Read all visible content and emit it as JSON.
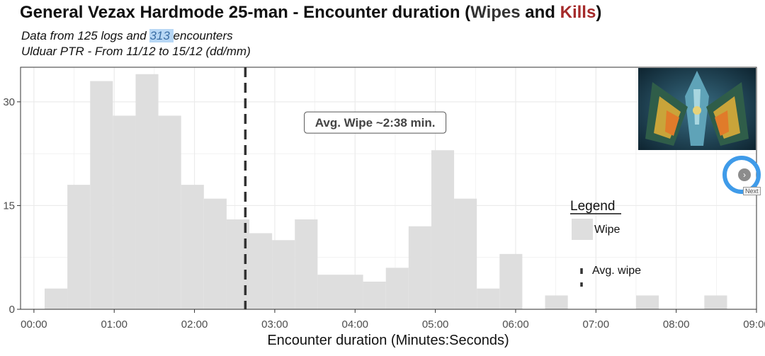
{
  "header": {
    "title_main": "General Vezax Hardmode 25-man - Encounter duration (",
    "title_wipes": "Wipes",
    "title_and": " and ",
    "title_kills": "Kills",
    "title_close": ")",
    "sub_prefix": "Data from 125 logs and ",
    "sub_highlight": "313 ",
    "sub_suffix": "encounters",
    "subtitle2": "Ulduar PTR - From 11/12 to 15/12 (dd/mm)"
  },
  "chart_data": {
    "type": "bar",
    "xlabel": "Encounter duration (Minutes:Seconds)",
    "ylabel": "",
    "xlim": [
      -10,
      540
    ],
    "ylim": [
      0,
      35
    ],
    "x_ticks": [
      {
        "value": 0,
        "label": "00:00"
      },
      {
        "value": 60,
        "label": "01:00"
      },
      {
        "value": 120,
        "label": "02:00"
      },
      {
        "value": 180,
        "label": "03:00"
      },
      {
        "value": 240,
        "label": "04:00"
      },
      {
        "value": 300,
        "label": "05:00"
      },
      {
        "value": 360,
        "label": "06:00"
      },
      {
        "value": 420,
        "label": "07:00"
      },
      {
        "value": 480,
        "label": "08:00"
      },
      {
        "value": 540,
        "label": "09:00"
      }
    ],
    "y_ticks": [
      0,
      15,
      30
    ],
    "grid": true,
    "bin_width": 17,
    "series": [
      {
        "name": "Wipe",
        "color": "#dedede",
        "bins": [
          {
            "x0": 8,
            "value": 3
          },
          {
            "x0": 25,
            "value": 18
          },
          {
            "x0": 42,
            "value": 33
          },
          {
            "x0": 59,
            "value": 28
          },
          {
            "x0": 76,
            "value": 34
          },
          {
            "x0": 93,
            "value": 28
          },
          {
            "x0": 110,
            "value": 18
          },
          {
            "x0": 127,
            "value": 16
          },
          {
            "x0": 144,
            "value": 13
          },
          {
            "x0": 161,
            "value": 11
          },
          {
            "x0": 178,
            "value": 10
          },
          {
            "x0": 195,
            "value": 13
          },
          {
            "x0": 212,
            "value": 5
          },
          {
            "x0": 229,
            "value": 5
          },
          {
            "x0": 246,
            "value": 4
          },
          {
            "x0": 263,
            "value": 6
          },
          {
            "x0": 280,
            "value": 12
          },
          {
            "x0": 297,
            "value": 23
          },
          {
            "x0": 314,
            "value": 16
          },
          {
            "x0": 331,
            "value": 3
          },
          {
            "x0": 348,
            "value": 8
          },
          {
            "x0": 365,
            "value": 0
          },
          {
            "x0": 382,
            "value": 2
          },
          {
            "x0": 399,
            "value": 0
          },
          {
            "x0": 416,
            "value": 0
          },
          {
            "x0": 433,
            "value": 0
          },
          {
            "x0": 450,
            "value": 2
          },
          {
            "x0": 467,
            "value": 0
          },
          {
            "x0": 484,
            "value": 0
          },
          {
            "x0": 501,
            "value": 2
          }
        ]
      }
    ],
    "avg_wipe_x": 158,
    "annotation": "Avg. Wipe ~2:38 min.",
    "annotation_x": 255,
    "annotation_y": 27.0,
    "legend": {
      "title": "Legend",
      "position": "right",
      "items": [
        {
          "label": "Wipe",
          "kind": "box",
          "color": "#dedede"
        },
        {
          "label": "Avg. wipe",
          "kind": "dashed-line",
          "color": "#333333"
        }
      ]
    }
  },
  "colors": {
    "grid": "#ebebeb",
    "axis": "#333333",
    "wipes_title": "#333333",
    "kills_title": "#a52a2a"
  },
  "widgets": {
    "next_icon": "chevron-right-icon",
    "next_tooltip": "Next"
  }
}
